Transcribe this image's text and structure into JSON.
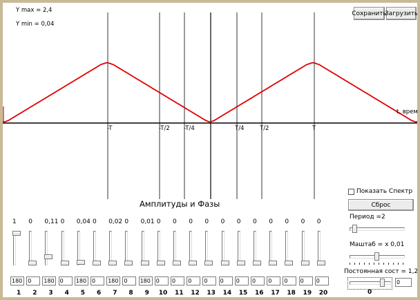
{
  "plot": {
    "ymax_label": "Y max = 2,4",
    "ymin_label": "Y min =  0,04",
    "time_label": "t, время",
    "tick_labels": [
      "-T",
      "-T/2",
      "-T/4",
      "T/4",
      "T/2",
      "T"
    ]
  },
  "buttons": {
    "save": "Сохранить",
    "load": "Загрузить",
    "reset": "Сброс"
  },
  "section_title": "Амплитуды и Фазы",
  "harmonics": {
    "amplitudes": [
      "1",
      "0",
      "0,11",
      "0",
      "0,04",
      "0",
      "0,02",
      "0",
      "0,01",
      "0",
      "0",
      "0",
      "0",
      "0",
      "0",
      "0",
      "0",
      "0",
      "0",
      "0"
    ],
    "phases": [
      "180",
      "0",
      "180",
      "0",
      "180",
      "0",
      "180",
      "0",
      "180",
      "0",
      "0",
      "0",
      "0",
      "0",
      "0",
      "0",
      "0",
      "0",
      "0",
      "0"
    ],
    "numbers": [
      "1",
      "2",
      "3",
      "4",
      "5",
      "6",
      "7",
      "8",
      "9",
      "10",
      "11",
      "12",
      "13",
      "14",
      "15",
      "16",
      "17",
      "18",
      "19",
      "20"
    ],
    "slider_levels": [
      0.0,
      1.0,
      0.8,
      1.0,
      0.97,
      1.0,
      1.0,
      1.0,
      1.0,
      1.0,
      1.0,
      1.0,
      1.0,
      1.0,
      1.0,
      1.0,
      1.0,
      1.0,
      1.0,
      1.0
    ]
  },
  "controls": {
    "show_spectrum_label": "Показать Спектр",
    "period_label": "Период =2",
    "period_level": 0.05,
    "scale_label": "Маштаб = x 0,01",
    "scale_level": 0.5,
    "const_label": "Постоянная сост =  1,22",
    "const_level": 0.85,
    "const_value": "0",
    "const_zero": "0"
  }
}
